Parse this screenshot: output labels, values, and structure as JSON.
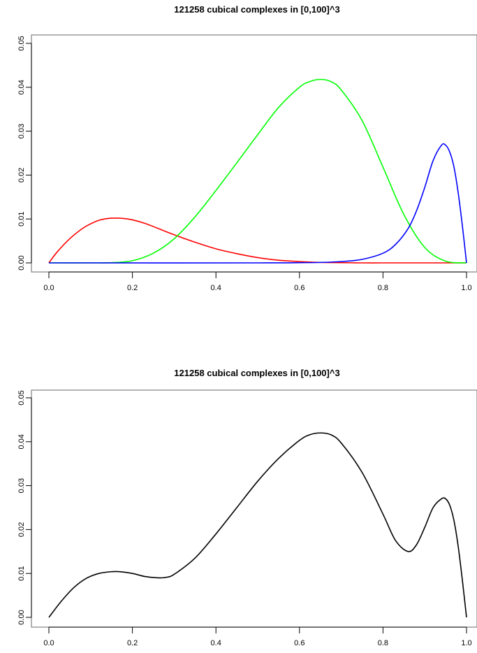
{
  "chart_data": [
    {
      "type": "line",
      "title": "121258 cubical complexes in [0,100]^3",
      "xlabel": "",
      "ylabel": "",
      "xlim": [
        0,
        1
      ],
      "ylim": [
        0,
        0.05
      ],
      "xticks": [
        "0.0",
        "0.2",
        "0.4",
        "0.6",
        "0.8",
        "1.0"
      ],
      "yticks": [
        "0.00",
        "0.01",
        "0.02",
        "0.03",
        "0.04",
        "0.05"
      ],
      "grid": false,
      "legend": "none",
      "series": [
        {
          "color": "#ff0000",
          "x": [
            0,
            0.02,
            0.05,
            0.08,
            0.1,
            0.12,
            0.14,
            0.16,
            0.18,
            0.2,
            0.23,
            0.26,
            0.3,
            0.35,
            0.4,
            0.45,
            0.5,
            0.55,
            0.6,
            0.65,
            0.7,
            0.75,
            0.8,
            0.85,
            0.9,
            0.95,
            1.0
          ],
          "y": [
            0,
            0.0025,
            0.0055,
            0.0078,
            0.0089,
            0.0097,
            0.0101,
            0.0102,
            0.0101,
            0.0098,
            0.009,
            0.0079,
            0.0064,
            0.0047,
            0.0032,
            0.0021,
            0.0012,
            0.0006,
            0.0003,
            0.0001,
            5e-05,
            0,
            0,
            0,
            0,
            0,
            0
          ]
        },
        {
          "color": "#00ff00",
          "x": [
            0,
            0.1,
            0.15,
            0.2,
            0.25,
            0.3,
            0.35,
            0.4,
            0.45,
            0.5,
            0.55,
            0.6,
            0.625,
            0.65,
            0.675,
            0.7,
            0.75,
            0.8,
            0.85,
            0.9,
            0.95,
            1.0
          ],
          "y": [
            0,
            0,
            5e-05,
            0.0005,
            0.0022,
            0.0055,
            0.0105,
            0.0165,
            0.0228,
            0.0292,
            0.0354,
            0.04,
            0.0413,
            0.0418,
            0.0413,
            0.0394,
            0.0324,
            0.0218,
            0.011,
            0.0035,
            0.0004,
            0
          ]
        },
        {
          "color": "#0000ff",
          "x": [
            0,
            0.5,
            0.6,
            0.65,
            0.7,
            0.75,
            0.8,
            0.83,
            0.86,
            0.88,
            0.9,
            0.92,
            0.94,
            0.95,
            0.96,
            0.97,
            0.98,
            0.99,
            1.0
          ],
          "y": [
            0,
            0,
            5e-05,
            0.0001,
            0.0003,
            0.0008,
            0.0022,
            0.0042,
            0.0078,
            0.0118,
            0.0172,
            0.0233,
            0.0268,
            0.0268,
            0.0252,
            0.0218,
            0.016,
            0.0085,
            0
          ]
        }
      ]
    },
    {
      "type": "line",
      "title": "121258 cubical complexes in [0,100]^3",
      "xlabel": "",
      "ylabel": "",
      "xlim": [
        0,
        1
      ],
      "ylim": [
        0,
        0.05
      ],
      "xticks": [
        "0.0",
        "0.2",
        "0.4",
        "0.6",
        "0.8",
        "1.0"
      ],
      "yticks": [
        "0.00",
        "0.01",
        "0.02",
        "0.03",
        "0.04",
        "0.05"
      ],
      "grid": false,
      "legend": "none",
      "series": [
        {
          "color": "#000000",
          "x": [
            0,
            0.03,
            0.06,
            0.09,
            0.12,
            0.15,
            0.17,
            0.2,
            0.23,
            0.26,
            0.28,
            0.3,
            0.35,
            0.4,
            0.45,
            0.5,
            0.55,
            0.6,
            0.625,
            0.65,
            0.675,
            0.7,
            0.75,
            0.8,
            0.83,
            0.86,
            0.88,
            0.9,
            0.92,
            0.94,
            0.95,
            0.96,
            0.97,
            0.98,
            0.99,
            1.0
          ],
          "y": [
            0,
            0.0037,
            0.0068,
            0.0089,
            0.01,
            0.0104,
            0.0104,
            0.01,
            0.0093,
            0.009,
            0.0091,
            0.0098,
            0.0135,
            0.019,
            0.025,
            0.031,
            0.0362,
            0.0403,
            0.0416,
            0.042,
            0.0416,
            0.0397,
            0.033,
            0.0235,
            0.0175,
            0.015,
            0.0165,
            0.0205,
            0.025,
            0.027,
            0.027,
            0.0255,
            0.022,
            0.0162,
            0.0085,
            0
          ]
        }
      ]
    }
  ]
}
